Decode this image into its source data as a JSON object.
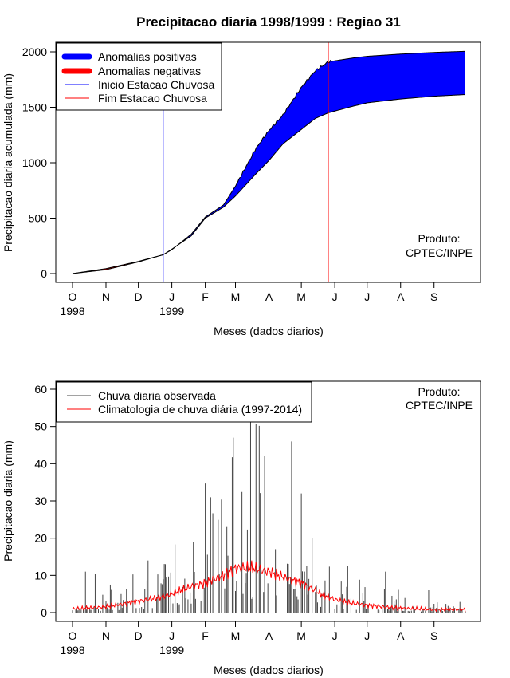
{
  "title": "Precipitacao diaria 1998/1999 : Regiao 31",
  "chart_data": [
    {
      "type": "area",
      "ylabel": "Precipitacao diaria acumulada (mm)",
      "xlabel": "Meses (dados diarios)",
      "ylim": [
        0,
        2050
      ],
      "yticks": [
        "0",
        "500",
        "1000",
        "1500",
        "2000"
      ],
      "ytick_values": [
        0,
        500,
        1000,
        1500,
        2000
      ],
      "month_ticks": [
        "O",
        "N",
        "D",
        "J",
        "F",
        "M",
        "A",
        "M",
        "J",
        "J",
        "A",
        "S"
      ],
      "month_start_days": [
        0,
        31,
        61,
        92,
        123,
        151,
        182,
        212,
        243,
        273,
        304,
        335
      ],
      "year_labels": [
        {
          "label": "1998",
          "day": 0
        },
        {
          "label": "1999",
          "day": 92
        }
      ],
      "days": 364,
      "legend": {
        "positive": "Anomalias positivas",
        "negative": "Anomalias negativas",
        "start": "Inicio Estacao Chuvosa",
        "end": "Fim Estacao Chuvosa"
      },
      "rainy_season": {
        "start_day": 84,
        "end_day": 237
      },
      "observed_cumulative": {
        "days": [
          0,
          31,
          61,
          84,
          92,
          110,
          123,
          140,
          151,
          170,
          182,
          195,
          212,
          225,
          237,
          260,
          273,
          304,
          335,
          364
        ],
        "values": [
          0,
          35,
          105,
          170,
          215,
          355,
          510,
          620,
          790,
          1130,
          1290,
          1430,
          1680,
          1830,
          1910,
          1945,
          1960,
          1980,
          1995,
          2005
        ]
      },
      "climatology_cumulative": {
        "days": [
          0,
          31,
          61,
          84,
          92,
          110,
          123,
          140,
          151,
          170,
          182,
          195,
          212,
          225,
          237,
          260,
          273,
          304,
          335,
          364
        ],
        "values": [
          0,
          45,
          110,
          170,
          220,
          340,
          500,
          600,
          700,
          900,
          1020,
          1170,
          1300,
          1400,
          1450,
          1510,
          1540,
          1575,
          1600,
          1615
        ]
      },
      "annotation": "Produto:\nCPTEC/INPE",
      "annotation_lines": [
        "Produto:",
        "CPTEC/INPE"
      ]
    },
    {
      "type": "bar",
      "ylabel": "Precipitacao diaria (mm)",
      "xlabel": "Meses (dados diarios)",
      "ylim": [
        0,
        62
      ],
      "yticks": [
        "0",
        "10",
        "20",
        "30",
        "40",
        "50",
        "60"
      ],
      "ytick_values": [
        0,
        10,
        20,
        30,
        40,
        50,
        60
      ],
      "month_ticks": [
        "O",
        "N",
        "D",
        "J",
        "F",
        "M",
        "A",
        "M",
        "J",
        "J",
        "A",
        "S"
      ],
      "month_start_days": [
        0,
        31,
        61,
        92,
        123,
        151,
        182,
        212,
        243,
        273,
        304,
        335
      ],
      "year_labels": [
        {
          "label": "1998",
          "day": 0
        },
        {
          "label": "1999",
          "day": 92
        }
      ],
      "legend": {
        "observed": "Chuva diaria observada",
        "climatology": "Climatologia de chuva diária (1997-2014)"
      },
      "annotation": "Produto:\nCPTEC/INPE",
      "annotation_lines": [
        "Produto:",
        "CPTEC/INPE"
      ],
      "notable_daily_peaks": [
        {
          "day": 12,
          "value": 11
        },
        {
          "day": 21,
          "value": 10.5
        },
        {
          "day": 70,
          "value": 14
        },
        {
          "day": 112,
          "value": 19
        },
        {
          "day": 128,
          "value": 31
        },
        {
          "day": 149,
          "value": 47
        },
        {
          "day": 165,
          "value": 53
        },
        {
          "day": 178,
          "value": 42
        },
        {
          "day": 203,
          "value": 46
        },
        {
          "day": 212,
          "value": 32
        },
        {
          "day": 290,
          "value": 11
        },
        {
          "day": 330,
          "value": 6
        }
      ],
      "climatology_daily": {
        "days": [
          0,
          30,
          60,
          80,
          92,
          110,
          123,
          140,
          151,
          165,
          182,
          200,
          212,
          230,
          243,
          260,
          273,
          290,
          304,
          320,
          335,
          364
        ],
        "values": [
          1,
          1.5,
          3,
          4,
          5,
          7,
          8,
          10,
          12,
          12,
          11,
          9,
          8,
          5,
          3.5,
          2.5,
          2,
          1.5,
          1.2,
          1,
          0.8,
          0.8
        ]
      }
    }
  ]
}
